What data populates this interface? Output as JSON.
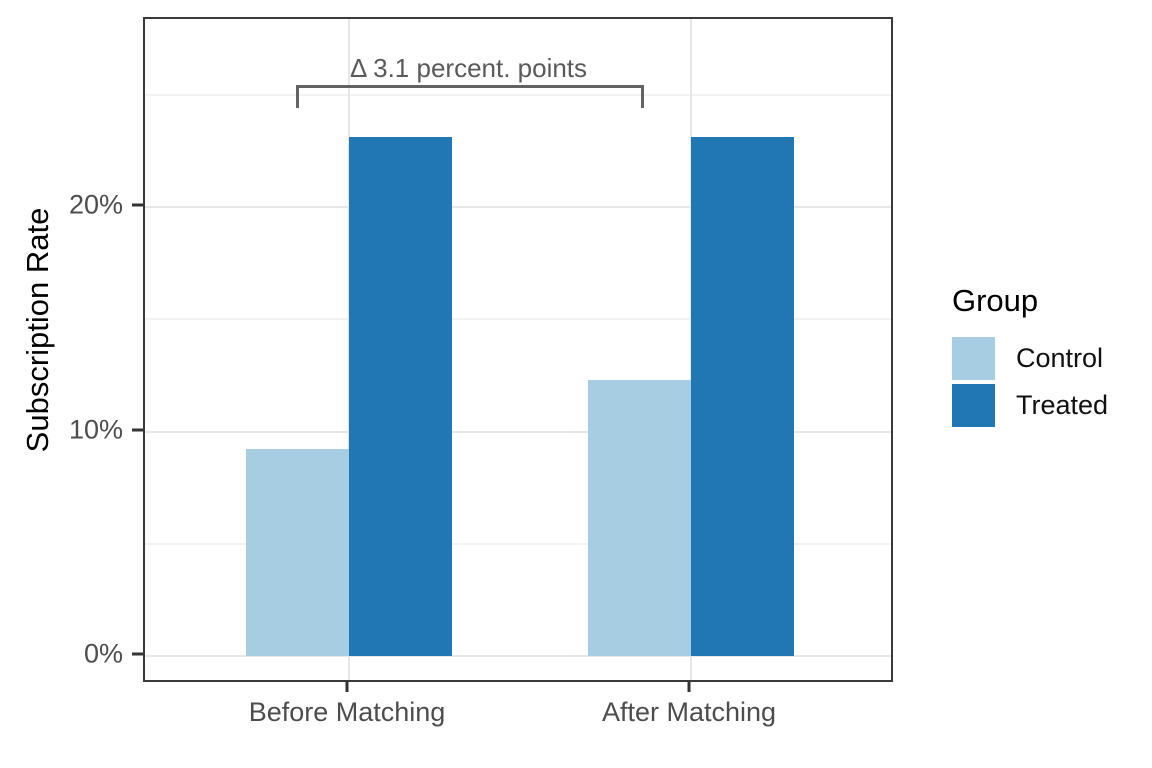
{
  "chart_data": {
    "type": "bar",
    "title": "",
    "categories": [
      "Before Matching",
      "After Matching"
    ],
    "series": [
      {
        "name": "Control",
        "color": "#A6CDE2",
        "values": [
          9.2,
          12.3
        ]
      },
      {
        "name": "Treated",
        "color": "#2077B4",
        "values": [
          23.1,
          23.1
        ]
      }
    ],
    "xlabel": "",
    "ylabel": "Subscription Rate",
    "ylim": [
      0,
      28.4
    ],
    "yticks": [
      {
        "value": 0,
        "label": "0%"
      },
      {
        "value": 10,
        "label": "10%"
      },
      {
        "value": 20,
        "label": "20%"
      }
    ],
    "yminor": [
      5,
      15,
      25
    ],
    "grid": true,
    "legend": {
      "title": "Group",
      "position": "right",
      "entries": [
        "Control",
        "Treated"
      ]
    },
    "annotation": {
      "text": "Δ 3.1 percent. points",
      "meaning": "difference between Control bars before vs after matching"
    }
  }
}
